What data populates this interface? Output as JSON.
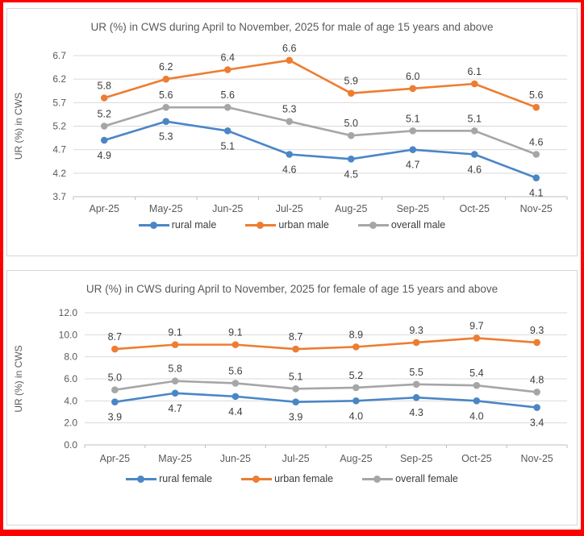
{
  "page": {
    "outer_border_color": "#fe0000",
    "background_color": "#ffffff"
  },
  "chart_data": [
    {
      "type": "line",
      "title": "UR (%) in CWS during April to November, 2025 for male of age 15 years and above",
      "xlabel": "",
      "ylabel": "UR (%) in CWS",
      "categories": [
        "Apr-25",
        "May-25",
        "Jun-25",
        "Jul-25",
        "Aug-25",
        "Sep-25",
        "Oct-25",
        "Nov-25"
      ],
      "series": [
        {
          "name": "rural male",
          "color": "#4a86c6",
          "label_position": "below",
          "values": [
            4.9,
            5.3,
            5.1,
            4.6,
            4.5,
            4.7,
            4.6,
            4.1
          ]
        },
        {
          "name": "urban male",
          "color": "#ed7d31",
          "label_position": "above",
          "values": [
            5.8,
            6.2,
            6.4,
            6.6,
            5.9,
            6.0,
            6.1,
            5.6
          ]
        },
        {
          "name": "overall male",
          "color": "#a6a6a6",
          "label_position": "above",
          "values": [
            5.2,
            5.6,
            5.6,
            5.3,
            5.0,
            5.1,
            5.1,
            4.6
          ]
        }
      ],
      "ylim": [
        3.7,
        6.7
      ],
      "ytick_step": 0.5,
      "ytick_labels": [
        "3.7",
        "4.2",
        "4.7",
        "5.2",
        "5.7",
        "6.2",
        "6.7"
      ],
      "grid": true,
      "legend_position": "bottom",
      "gridline_color": "#d9d9d9",
      "axis_color": "#bfbfbf"
    },
    {
      "type": "line",
      "title": "UR (%) in CWS during April to November, 2025 for female of age 15 years and above",
      "xlabel": "",
      "ylabel": "UR (%) in CWS",
      "categories": [
        "Apr-25",
        "May-25",
        "Jun-25",
        "Jul-25",
        "Aug-25",
        "Sep-25",
        "Oct-25",
        "Nov-25"
      ],
      "series": [
        {
          "name": "rural female",
          "color": "#4a86c6",
          "label_position": "below",
          "values": [
            3.9,
            4.7,
            4.4,
            3.9,
            4.0,
            4.3,
            4.0,
            3.4
          ]
        },
        {
          "name": "urban female",
          "color": "#ed7d31",
          "label_position": "above",
          "values": [
            8.7,
            9.1,
            9.1,
            8.7,
            8.9,
            9.3,
            9.7,
            9.3
          ]
        },
        {
          "name": "overall female",
          "color": "#a6a6a6",
          "label_position": "above",
          "values": [
            5.0,
            5.8,
            5.6,
            5.1,
            5.2,
            5.5,
            5.4,
            4.8
          ]
        }
      ],
      "ylim": [
        0.0,
        12.0
      ],
      "ytick_step": 2.0,
      "ytick_labels": [
        "0.0",
        "2.0",
        "4.0",
        "6.0",
        "8.0",
        "10.0",
        "12.0"
      ],
      "grid": true,
      "legend_position": "bottom",
      "gridline_color": "#d9d9d9",
      "axis_color": "#bfbfbf"
    }
  ]
}
